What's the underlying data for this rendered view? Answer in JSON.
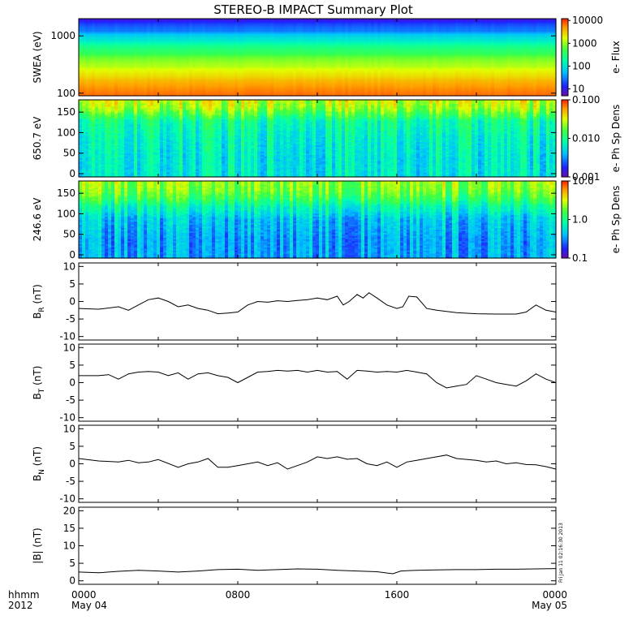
{
  "title": "STEREO-B IMPACT Summary Plot",
  "stamp": "Fri Jan 11 02:16:30 2013",
  "xaxis": {
    "row1_label": "hhmm",
    "row2_label": "2012",
    "range_hours": [
      0,
      24
    ],
    "ticks": [
      {
        "h": 0,
        "label": "0000",
        "sub": "May 04"
      },
      {
        "h": 8,
        "label": "0800",
        "sub": ""
      },
      {
        "h": 16,
        "label": "1600",
        "sub": ""
      },
      {
        "h": 24,
        "label": "0000",
        "sub": "May 05"
      }
    ]
  },
  "colors": {
    "trace": "#000000",
    "frame": "#000000"
  },
  "chart_data": [
    {
      "type": "heatmap",
      "ylabel": "SWEA (eV)",
      "yscale": "log",
      "ylim": [
        90,
        2000
      ],
      "yticks": [
        100,
        1000
      ],
      "ytick_labels": [
        "100",
        "1000"
      ],
      "colorbar": {
        "label": "e- Flux",
        "scale": "log",
        "range": [
          5,
          12000
        ],
        "ticks": [
          10,
          100,
          1000,
          10000
        ],
        "tick_labels": [
          "10",
          "100",
          "1000",
          "10000"
        ]
      },
      "z_profile_y": [
        90,
        130,
        200,
        300,
        500,
        800,
        1200,
        2000
      ],
      "z_profile_z": [
        7000,
        5000,
        2500,
        1200,
        400,
        120,
        30,
        7
      ]
    },
    {
      "type": "heatmap",
      "ylabel": "650.7 eV",
      "yscale": "linear",
      "ylim": [
        -8,
        180
      ],
      "yticks": [
        0,
        50,
        100,
        150
      ],
      "ytick_labels": [
        "0",
        "50",
        "100",
        "150"
      ],
      "colorbar": {
        "label": "e- Ph Sp Dens",
        "scale": "log",
        "range": [
          0.001,
          0.1
        ],
        "ticks": [
          0.001,
          0.01,
          0.1
        ],
        "tick_labels": [
          "0.001",
          "0.010",
          "0.100"
        ]
      },
      "z_profile_y": [
        0,
        40,
        90,
        130,
        145,
        165,
        180
      ],
      "z_profile_z": [
        0.006,
        0.006,
        0.007,
        0.009,
        0.015,
        0.025,
        0.03
      ]
    },
    {
      "type": "heatmap",
      "ylabel": "246.6 eV",
      "yscale": "linear",
      "ylim": [
        -8,
        180
      ],
      "yticks": [
        0,
        50,
        100,
        150
      ],
      "ytick_labels": [
        "0",
        "50",
        "100",
        "150"
      ],
      "colorbar": {
        "label": "e- Ph Sp Dens",
        "scale": "log",
        "range": [
          0.1,
          10
        ],
        "ticks": [
          0.1,
          1,
          10
        ],
        "tick_labels": [
          "0.1",
          "1.0",
          "10.0"
        ]
      },
      "z_profile_y": [
        0,
        40,
        90,
        120,
        140,
        160,
        180
      ],
      "z_profile_z": [
        0.35,
        0.35,
        0.45,
        0.8,
        1.4,
        2.0,
        2.3
      ]
    },
    {
      "type": "line",
      "ylabel_main": "B",
      "ylabel_sub": "R",
      "ylabel_unit": " (nT)",
      "ylim": [
        -11,
        11
      ],
      "yticks": [
        -10,
        -5,
        0,
        5,
        10
      ],
      "ytick_labels": [
        "-10",
        "-5",
        "0",
        "5",
        "10"
      ],
      "x": [
        0,
        1,
        2,
        2.5,
        3,
        3.5,
        4,
        4.5,
        5,
        5.5,
        6,
        6.5,
        7,
        7.5,
        8,
        8.5,
        9,
        9.5,
        10,
        10.5,
        11,
        11.5,
        12,
        12.5,
        13,
        13.3,
        13.6,
        14,
        14.3,
        14.6,
        15,
        15.5,
        16,
        16.3,
        16.6,
        17,
        17.5,
        18,
        19,
        20,
        21,
        22,
        22.5,
        23,
        23.5,
        24
      ],
      "y": [
        -2,
        -2.2,
        -1.5,
        -2.5,
        -1,
        0.5,
        1,
        0,
        -1.5,
        -1,
        -2,
        -2.5,
        -3.5,
        -3.3,
        -3,
        -1,
        0,
        -0.2,
        0.2,
        0,
        0.3,
        0.5,
        1,
        0.5,
        1.5,
        -1,
        0,
        2,
        1,
        2.5,
        1,
        -1,
        -2,
        -1.5,
        1.5,
        1.3,
        -2,
        -2.5,
        -3.2,
        -3.5,
        -3.6,
        -3.6,
        -3,
        -1,
        -2.5,
        -3
      ]
    },
    {
      "type": "line",
      "ylabel_main": "B",
      "ylabel_sub": "T",
      "ylabel_unit": " (nT)",
      "ylim": [
        -11,
        11
      ],
      "yticks": [
        -10,
        -5,
        0,
        5,
        10
      ],
      "ytick_labels": [
        "-10",
        "-5",
        "0",
        "5",
        "10"
      ],
      "x": [
        0,
        1,
        1.5,
        2,
        2.5,
        3,
        3.5,
        4,
        4.5,
        5,
        5.5,
        6,
        6.5,
        7,
        7.5,
        8,
        8.5,
        9,
        9.5,
        10,
        10.5,
        11,
        11.5,
        12,
        12.5,
        13,
        13.5,
        14,
        14.5,
        15,
        15.5,
        16,
        16.5,
        17,
        17.5,
        18,
        18.5,
        19,
        19.5,
        20,
        20.5,
        21,
        21.5,
        22,
        22.5,
        23,
        23.5,
        24
      ],
      "y": [
        2,
        2,
        2.3,
        1,
        2.5,
        3,
        3.2,
        3,
        2,
        2.8,
        1,
        2.5,
        2.8,
        2,
        1.5,
        0,
        1.5,
        3,
        3.2,
        3.5,
        3.3,
        3.5,
        3,
        3.5,
        3,
        3.2,
        1,
        3.5,
        3.3,
        3,
        3.2,
        3,
        3.5,
        3,
        2.5,
        0,
        -1.5,
        -1,
        -0.5,
        2,
        1,
        0,
        -0.5,
        -1,
        0.5,
        2.5,
        1,
        0
      ]
    },
    {
      "type": "line",
      "ylabel_main": "B",
      "ylabel_sub": "N",
      "ylabel_unit": " (nT)",
      "ylim": [
        -11,
        11
      ],
      "yticks": [
        -10,
        -5,
        0,
        5,
        10
      ],
      "ytick_labels": [
        "-10",
        "-5",
        "0",
        "5",
        "10"
      ],
      "x": [
        0,
        1,
        2,
        2.5,
        3,
        3.5,
        4,
        5,
        5.5,
        6,
        6.5,
        7,
        7.5,
        8,
        8.5,
        9,
        9.5,
        10,
        10.5,
        11,
        11.5,
        12,
        12.5,
        13,
        13.5,
        14,
        14.5,
        15,
        15.5,
        16,
        16.5,
        17,
        17.5,
        18,
        18.5,
        19,
        20,
        20.5,
        21,
        21.5,
        22,
        22.5,
        23,
        23.5,
        24
      ],
      "y": [
        1.5,
        0.8,
        0.5,
        1,
        0.3,
        0.5,
        1.2,
        -1,
        0,
        0.5,
        1.5,
        -1,
        -1,
        -0.5,
        0,
        0.5,
        -0.5,
        0.3,
        -1.5,
        -0.5,
        0.5,
        2,
        1.5,
        2,
        1.3,
        1.5,
        0,
        -0.5,
        0.5,
        -1,
        0.5,
        1,
        1.5,
        2,
        2.5,
        1.5,
        1,
        0.5,
        0.8,
        0,
        0.3,
        -0.2,
        -0.3,
        -0.8,
        -1.5
      ]
    },
    {
      "type": "line",
      "ylabel_main": "|B|",
      "ylabel_sub": "",
      "ylabel_unit": " (nT)",
      "ylim": [
        -1,
        21
      ],
      "yticks": [
        0,
        5,
        10,
        15,
        20
      ],
      "ytick_labels": [
        "0",
        "5",
        "10",
        "15",
        "20"
      ],
      "x": [
        0,
        1,
        2,
        3,
        4,
        5,
        6,
        7,
        8,
        9,
        10,
        11,
        12,
        13,
        14,
        15,
        15.8,
        16.2,
        17,
        18,
        19,
        20,
        21,
        22,
        23,
        24
      ],
      "y": [
        2.5,
        2.3,
        2.7,
        3,
        2.8,
        2.5,
        2.8,
        3.2,
        3.3,
        3,
        3.2,
        3.4,
        3.3,
        3,
        2.8,
        2.6,
        2,
        2.8,
        3,
        3.1,
        3.2,
        3.2,
        3.3,
        3.3,
        3.4,
        3.5
      ]
    }
  ]
}
